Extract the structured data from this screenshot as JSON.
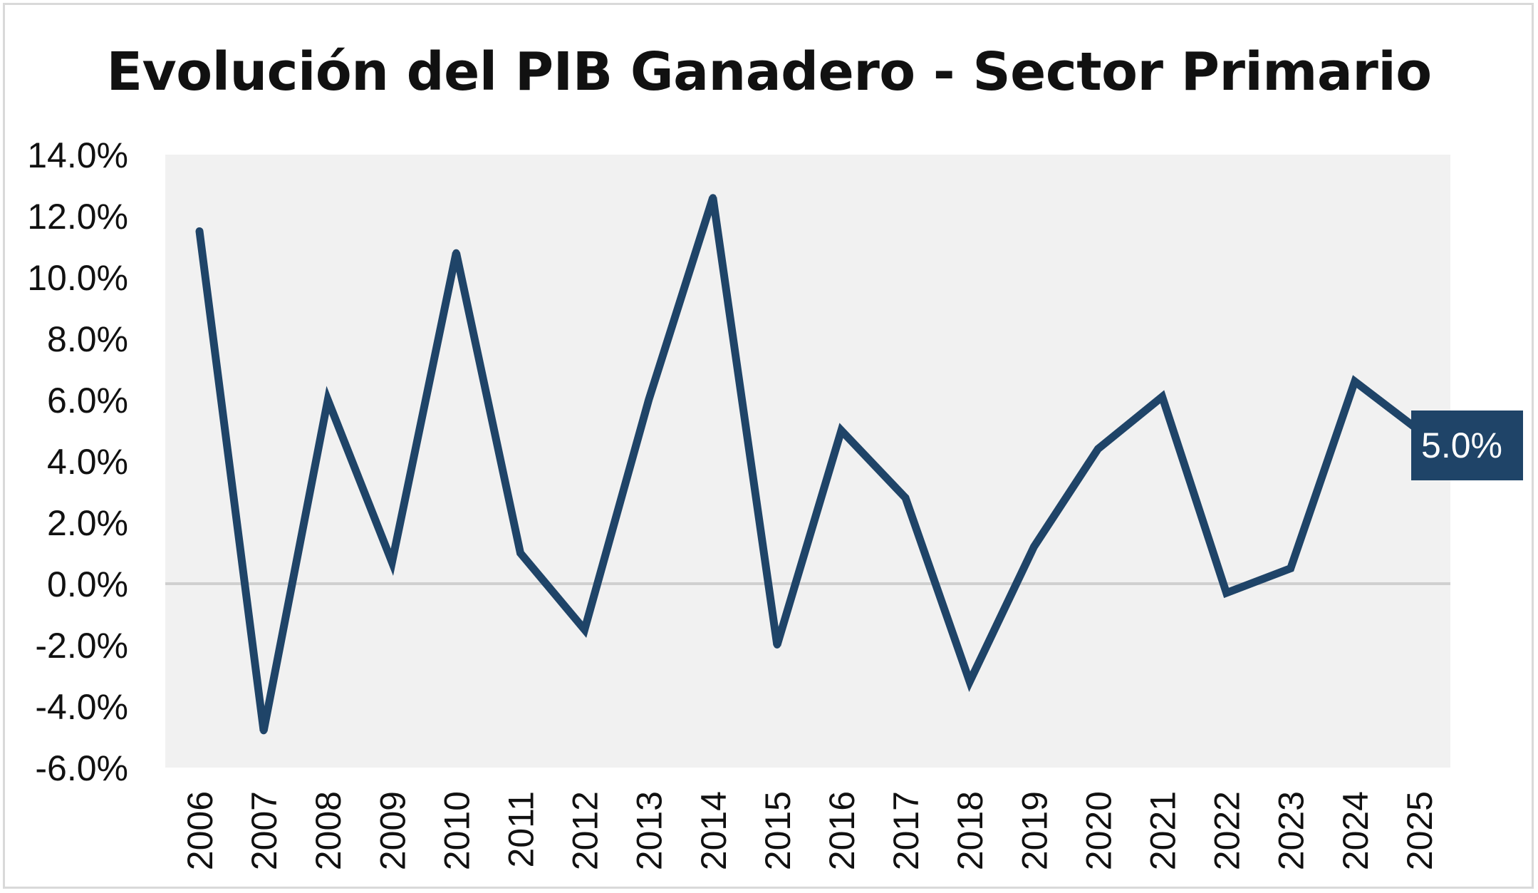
{
  "chart_data": {
    "type": "line",
    "title": "Evolución del PIB Ganadero - Sector Primario",
    "xlabel": "",
    "ylabel": "",
    "categories": [
      "2006",
      "2007",
      "2008",
      "2009",
      "2010",
      "2011",
      "2012",
      "2013",
      "2014",
      "2015",
      "2016",
      "2017",
      "2018",
      "2019",
      "2020",
      "2021",
      "2022",
      "2023",
      "2024",
      "2025"
    ],
    "series": [
      {
        "values": [
          11.5,
          -4.8,
          6.0,
          0.7,
          10.8,
          1.0,
          -1.5,
          6.0,
          12.6,
          -2.0,
          5.0,
          2.8,
          -3.2,
          1.2,
          4.4,
          6.1,
          -0.3,
          0.5,
          6.6,
          5.0
        ],
        "color": "#1f4468"
      }
    ],
    "ylim": [
      -6.0,
      14.0
    ],
    "yticks": [
      -6.0,
      -4.0,
      -2.0,
      0.0,
      2.0,
      4.0,
      6.0,
      8.0,
      10.0,
      12.0,
      14.0
    ],
    "ytick_labels": [
      "-6.0%",
      "-4.0%",
      "-2.0%",
      "0.0%",
      "2.0%",
      "4.0%",
      "6.0%",
      "8.0%",
      "10.0%",
      "12.0%",
      "14.0%"
    ],
    "last_value_label": "5.0%",
    "grid": false,
    "legend": "none",
    "colors": {
      "line": "#1f4468",
      "plot_background": "#f1f1f1",
      "zero_line": "#cfcfcf",
      "label_box": "#1f4468",
      "label_text": "#ffffff"
    }
  }
}
